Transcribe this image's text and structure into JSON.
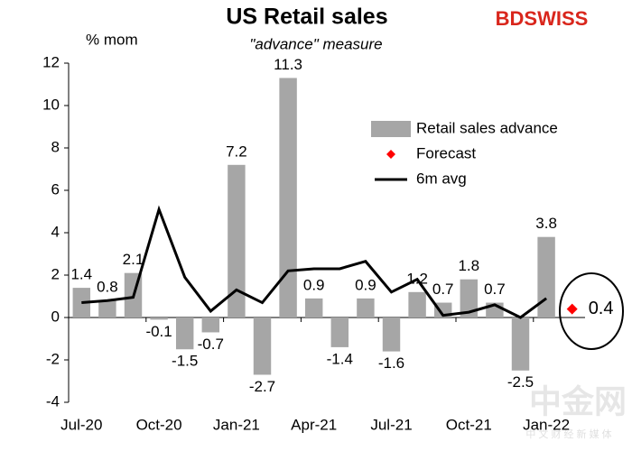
{
  "chart_data": {
    "type": "bar",
    "title": "US Retail sales",
    "subtitle": "\"advance\" measure",
    "y_label": "% mom",
    "logo": "BDSWISS",
    "watermark": "中金网",
    "watermark_sub": "中 文 财 经 新 媒 体",
    "categories": [
      "Jul-20",
      null,
      null,
      "Oct-20",
      null,
      null,
      "Jan-21",
      null,
      null,
      "Apr-21",
      null,
      null,
      "Jul-21",
      null,
      null,
      "Oct-21",
      null,
      null,
      "Jan-22",
      null
    ],
    "series": [
      {
        "name": "Retail sales advance",
        "type": "bar",
        "color": "#a6a6a6",
        "values": [
          1.4,
          0.8,
          2.1,
          -0.1,
          -1.5,
          -0.7,
          7.2,
          -2.7,
          11.3,
          0.9,
          -1.4,
          0.9,
          -1.6,
          1.2,
          0.7,
          1.8,
          0.7,
          -2.5,
          3.8,
          null
        ]
      },
      {
        "name": "Forecast",
        "type": "scatter",
        "color": "#ff0000",
        "values": [
          null,
          null,
          null,
          null,
          null,
          null,
          null,
          null,
          null,
          null,
          null,
          null,
          null,
          null,
          null,
          null,
          null,
          null,
          null,
          0.4
        ]
      },
      {
        "name": "6m avg",
        "type": "line",
        "color": "#000000",
        "values": [
          0.7,
          0.8,
          0.95,
          5.1,
          1.9,
          0.3,
          1.3,
          0.7,
          2.2,
          2.3,
          2.3,
          2.65,
          1.2,
          1.8,
          0.1,
          0.25,
          0.6,
          0.0,
          0.9,
          null
        ]
      }
    ],
    "ylim": [
      -4,
      12
    ],
    "yticks": [
      -4,
      -2,
      0,
      2,
      4,
      6,
      8,
      10,
      12
    ],
    "grid": false
  }
}
